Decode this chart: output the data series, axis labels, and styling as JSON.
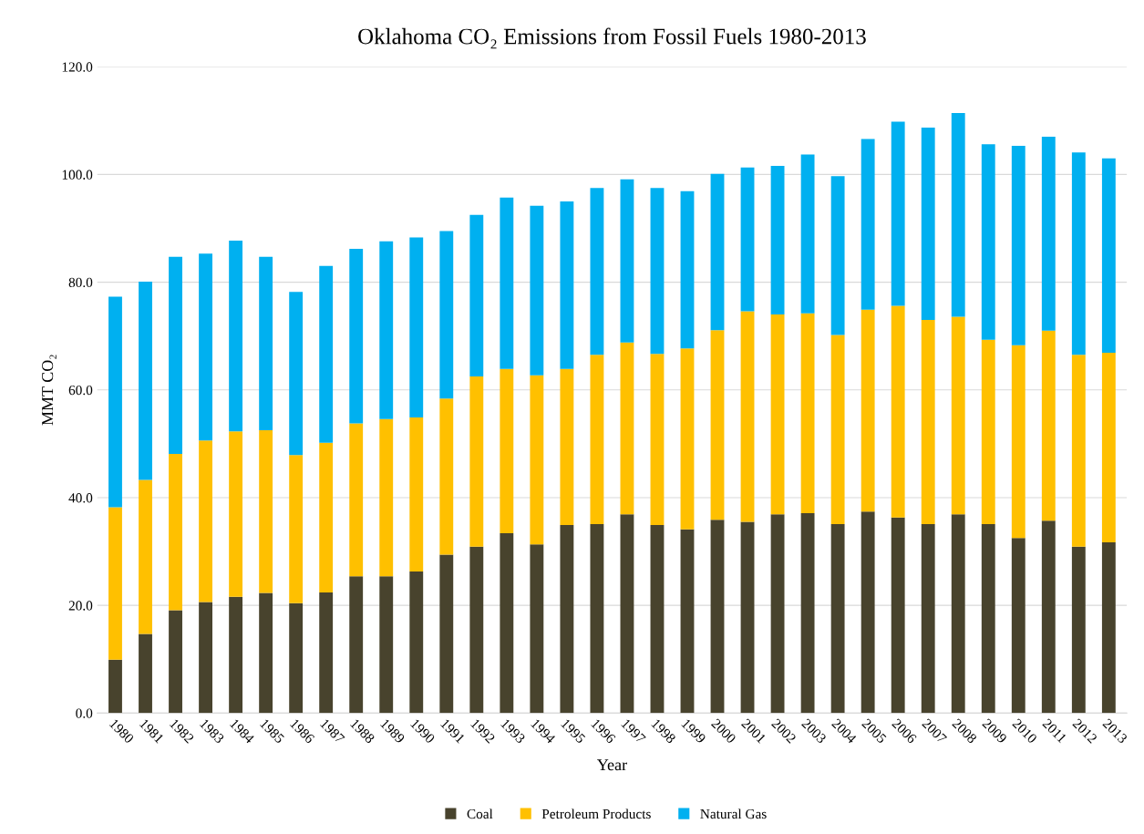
{
  "chart_data": {
    "type": "bar",
    "title": "Oklahoma CO₂ Emissions from Fossil Fuels 1980-2013",
    "xlabel": "Year",
    "ylabel": "MMT CO₂",
    "stacked": true,
    "categories": [
      "1980",
      "1981",
      "1982",
      "1983",
      "1984",
      "1985",
      "1986",
      "1987",
      "1988",
      "1989",
      "1990",
      "1991",
      "1992",
      "1993",
      "1994",
      "1995",
      "1996",
      "1997",
      "1998",
      "1999",
      "2000",
      "2001",
      "2002",
      "2003",
      "2004",
      "2005",
      "2006",
      "2007",
      "2008",
      "2009",
      "2010",
      "2011",
      "2012",
      "2013"
    ],
    "series": [
      {
        "name": "Coal",
        "color": "#48432d",
        "values": [
          9.9,
          14.7,
          19.1,
          20.6,
          21.6,
          22.3,
          20.4,
          22.4,
          25.4,
          25.4,
          26.3,
          29.4,
          30.9,
          33.4,
          31.3,
          34.9,
          35.1,
          36.9,
          34.9,
          34.1,
          35.9,
          35.5,
          36.9,
          37.1,
          35.1,
          37.4,
          36.3,
          35.1,
          36.9,
          35.1,
          32.5,
          35.7,
          30.9,
          31.7
        ]
      },
      {
        "name": "Petroleum Products",
        "color": "#ffc000",
        "values": [
          28.3,
          28.6,
          29.0,
          30.0,
          30.7,
          30.2,
          27.5,
          27.8,
          28.4,
          29.2,
          28.6,
          29.0,
          31.6,
          30.5,
          31.4,
          29.0,
          31.4,
          31.9,
          31.8,
          33.6,
          35.2,
          39.1,
          37.1,
          37.1,
          35.1,
          37.5,
          39.3,
          37.9,
          36.7,
          34.2,
          35.8,
          35.3,
          35.6,
          35.2
        ]
      },
      {
        "name": "Natural Gas",
        "color": "#00b0f0",
        "values": [
          39.1,
          36.8,
          36.6,
          34.7,
          35.4,
          32.2,
          30.3,
          32.8,
          32.4,
          33.0,
          33.4,
          31.1,
          30.0,
          31.8,
          31.5,
          31.1,
          31.0,
          30.3,
          30.8,
          29.2,
          29.0,
          26.7,
          27.6,
          29.5,
          29.5,
          31.7,
          34.2,
          35.7,
          37.8,
          36.3,
          37.0,
          36.0,
          37.6,
          36.1
        ]
      }
    ],
    "ylim": [
      0,
      120
    ],
    "yticks": [
      {
        "value": 0,
        "label": "0.0"
      },
      {
        "value": 20,
        "label": "20.0"
      },
      {
        "value": 40,
        "label": "40.0"
      },
      {
        "value": 60,
        "label": "60.0"
      },
      {
        "value": 80,
        "label": "80.0"
      },
      {
        "value": 100,
        "label": "100.0"
      },
      {
        "value": 120,
        "label": "120.0"
      }
    ],
    "grid": "y",
    "legend": "bottom"
  }
}
